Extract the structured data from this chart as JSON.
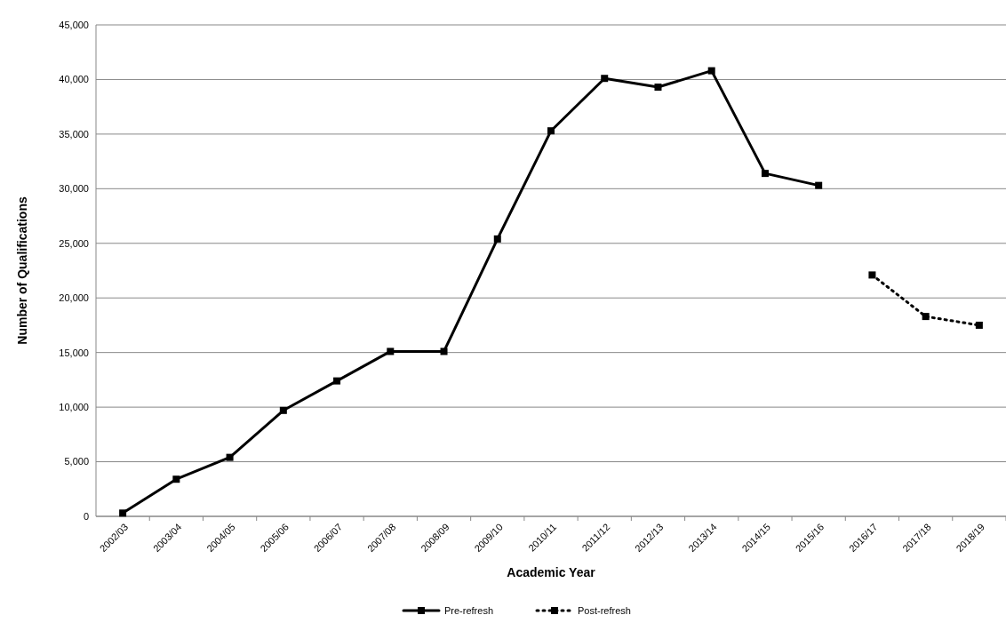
{
  "chart_data": {
    "type": "line",
    "xlabel": "Academic Year",
    "ylabel": "Number of Qualifications",
    "categories": [
      "2002/03",
      "2003/04",
      "2004/05",
      "2005/06",
      "2006/07",
      "2007/08",
      "2008/09",
      "2009/10",
      "2010/11",
      "2011/12",
      "2012/13",
      "2013/14",
      "2014/15",
      "2015/16",
      "2016/17",
      "2017/18",
      "2018/19"
    ],
    "series": [
      {
        "name": "Pre-refresh",
        "color": "#000000",
        "line_style": "solid",
        "values": [
          300,
          3400,
          5400,
          9700,
          12400,
          15100,
          15100,
          25400,
          35300,
          40100,
          39300,
          40800,
          31400,
          30300,
          null,
          null,
          null
        ]
      },
      {
        "name": "Post-refresh",
        "color": "#000000",
        "line_style": "dotted",
        "values": [
          null,
          null,
          null,
          null,
          null,
          null,
          null,
          null,
          null,
          null,
          null,
          null,
          null,
          null,
          22100,
          18300,
          17500
        ]
      }
    ],
    "ylim": [
      0,
      45000
    ],
    "yticks": [
      {
        "value": 0,
        "label": "0"
      },
      {
        "value": 5000,
        "label": "5,000"
      },
      {
        "value": 10000,
        "label": "10,000"
      },
      {
        "value": 15000,
        "label": "15,000"
      },
      {
        "value": 20000,
        "label": "20,000"
      },
      {
        "value": 25000,
        "label": "25,000"
      },
      {
        "value": 30000,
        "label": "30,000"
      },
      {
        "value": 35000,
        "label": "35,000"
      },
      {
        "value": 40000,
        "label": "40,000"
      },
      {
        "value": 45000,
        "label": "45,000"
      }
    ],
    "grid": "y",
    "legend": "bottom",
    "marker": "square"
  }
}
